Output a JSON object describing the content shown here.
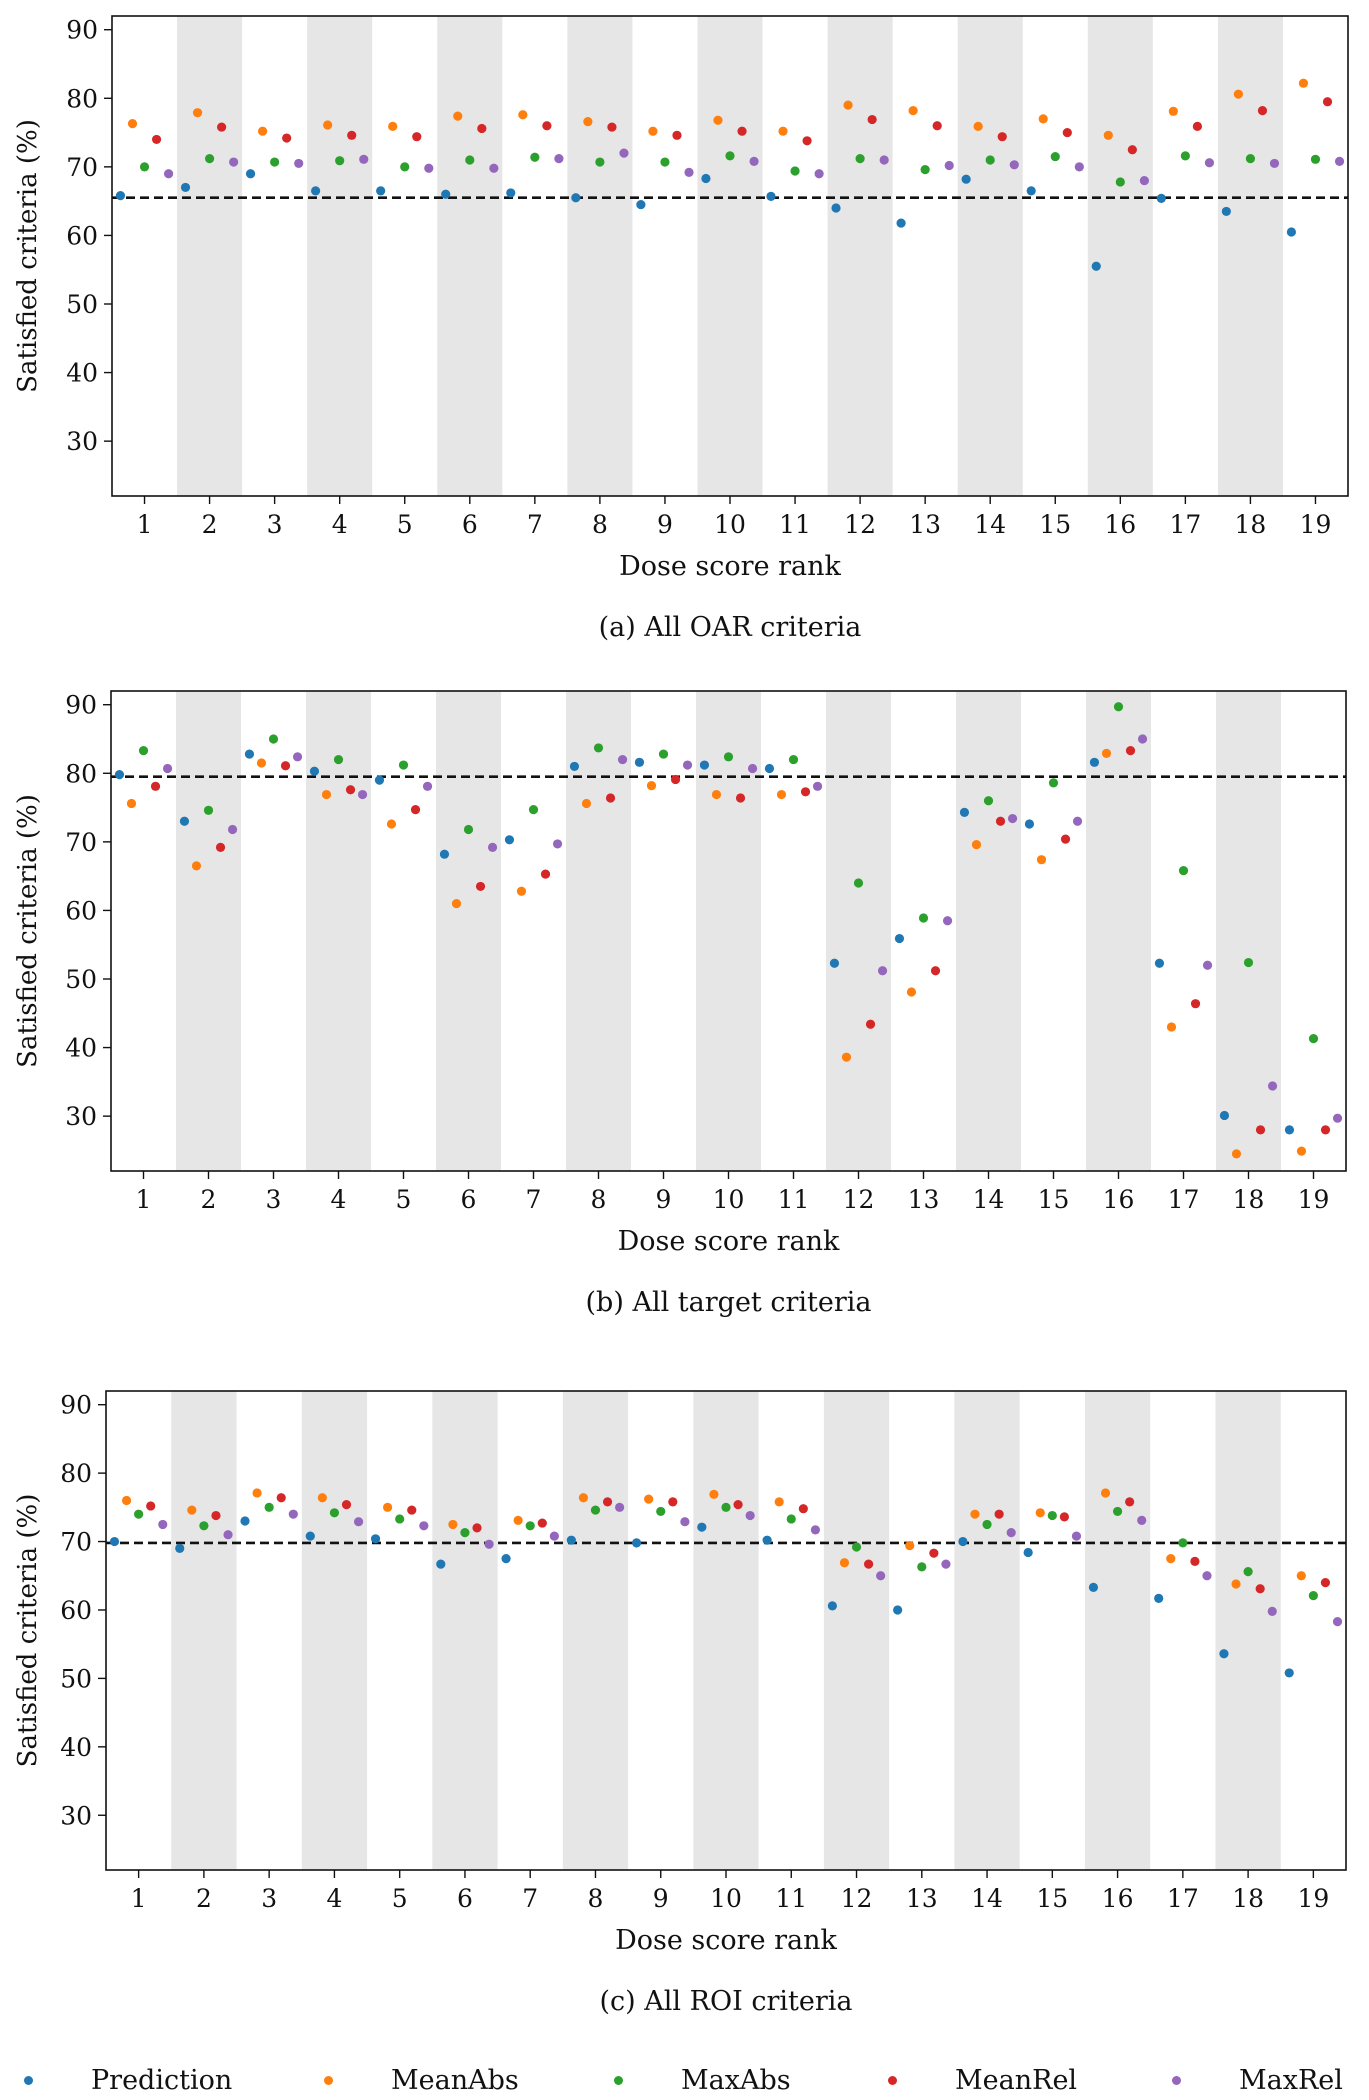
{
  "chart_data": [
    {
      "type": "scatter",
      "caption": "(a)  All OAR criteria",
      "xlabel": "Dose score rank",
      "ylabel": "Satisfied criteria (%)",
      "categories": [
        "1",
        "2",
        "3",
        "4",
        "5",
        "6",
        "7",
        "8",
        "9",
        "10",
        "11",
        "12",
        "13",
        "14",
        "15",
        "16",
        "17",
        "18",
        "19"
      ],
      "y_ticks": [
        "30",
        "40",
        "50",
        "60",
        "70",
        "80",
        "90"
      ],
      "ylim": [
        22,
        92
      ],
      "reference_line": 65.5,
      "shaded_ranks": [
        2,
        4,
        6,
        8,
        10,
        12,
        14,
        16,
        18
      ],
      "series": [
        {
          "name": "Prediction",
          "values": [
            65.8,
            67.0,
            69.0,
            66.5,
            66.5,
            66.0,
            66.2,
            65.5,
            64.5,
            68.3,
            65.7,
            64.0,
            61.8,
            68.2,
            66.5,
            55.5,
            65.4,
            63.5,
            60.5
          ]
        },
        {
          "name": "MeanAbs",
          "values": [
            76.3,
            77.9,
            75.2,
            76.1,
            75.9,
            77.4,
            77.6,
            76.6,
            75.2,
            76.8,
            75.2,
            79.0,
            78.2,
            75.9,
            77.0,
            74.6,
            78.1,
            80.6,
            82.2
          ]
        },
        {
          "name": "MaxAbs",
          "values": [
            70.0,
            71.2,
            70.7,
            70.9,
            70.0,
            71.0,
            71.4,
            70.7,
            70.7,
            71.6,
            69.4,
            71.2,
            69.6,
            71.0,
            71.5,
            67.8,
            71.6,
            71.2,
            71.1
          ]
        },
        {
          "name": "MeanRel",
          "values": [
            74.0,
            75.8,
            74.2,
            74.6,
            74.4,
            75.6,
            76.0,
            75.8,
            74.6,
            75.2,
            73.8,
            76.9,
            76.0,
            74.4,
            75.0,
            72.5,
            75.9,
            78.2,
            79.5
          ]
        },
        {
          "name": "MaxRel",
          "values": [
            69.0,
            70.7,
            70.5,
            71.1,
            69.8,
            69.8,
            71.2,
            72.0,
            69.2,
            70.8,
            69.0,
            71.0,
            70.2,
            70.3,
            70.0,
            68.0,
            70.6,
            70.5,
            70.8
          ]
        }
      ]
    },
    {
      "type": "scatter",
      "caption": "(b)  All target criteria",
      "xlabel": "Dose score rank",
      "ylabel": "Satisfied criteria (%)",
      "categories": [
        "1",
        "2",
        "3",
        "4",
        "5",
        "6",
        "7",
        "8",
        "9",
        "10",
        "11",
        "12",
        "13",
        "14",
        "15",
        "16",
        "17",
        "18",
        "19"
      ],
      "y_ticks": [
        "30",
        "40",
        "50",
        "60",
        "70",
        "80",
        "90"
      ],
      "ylim": [
        22,
        92
      ],
      "reference_line": 79.5,
      "shaded_ranks": [
        2,
        4,
        6,
        8,
        10,
        12,
        14,
        16,
        18
      ],
      "series": [
        {
          "name": "Prediction",
          "values": [
            79.8,
            73.0,
            82.8,
            80.3,
            79.0,
            68.2,
            70.3,
            81.0,
            81.6,
            81.2,
            80.7,
            52.3,
            55.9,
            74.3,
            72.6,
            81.6,
            52.3,
            30.1,
            28.0
          ]
        },
        {
          "name": "MeanAbs",
          "values": [
            75.6,
            66.5,
            81.5,
            76.9,
            72.6,
            61.0,
            62.8,
            75.6,
            78.2,
            76.9,
            76.9,
            38.6,
            48.1,
            69.6,
            67.4,
            82.9,
            43.0,
            24.5,
            24.9
          ]
        },
        {
          "name": "MaxAbs",
          "values": [
            83.3,
            74.6,
            85.0,
            82.0,
            81.2,
            71.8,
            74.7,
            83.7,
            82.8,
            82.4,
            82.0,
            64.0,
            58.9,
            76.0,
            78.6,
            89.7,
            65.8,
            52.4,
            41.3
          ]
        },
        {
          "name": "MeanRel",
          "values": [
            78.1,
            69.2,
            81.1,
            77.6,
            74.7,
            63.5,
            65.3,
            76.4,
            79.1,
            76.4,
            77.3,
            43.4,
            51.2,
            73.0,
            70.4,
            83.3,
            46.4,
            28.0,
            28.0
          ]
        },
        {
          "name": "MaxRel",
          "values": [
            80.7,
            71.8,
            82.4,
            76.9,
            78.1,
            69.2,
            69.7,
            82.0,
            81.2,
            80.7,
            78.1,
            51.2,
            58.5,
            73.4,
            73.0,
            85.0,
            52.0,
            34.4,
            29.7
          ]
        }
      ]
    },
    {
      "type": "scatter",
      "caption": "(c)  All ROI criteria",
      "xlabel": "Dose score rank",
      "ylabel": "Satisfied criteria (%)",
      "categories": [
        "1",
        "2",
        "3",
        "4",
        "5",
        "6",
        "7",
        "8",
        "9",
        "10",
        "11",
        "12",
        "13",
        "14",
        "15",
        "16",
        "17",
        "18",
        "19"
      ],
      "y_ticks": [
        "30",
        "40",
        "50",
        "60",
        "70",
        "80",
        "90"
      ],
      "ylim": [
        22,
        92
      ],
      "reference_line": 69.8,
      "shaded_ranks": [
        2,
        4,
        6,
        8,
        10,
        12,
        14,
        16,
        18
      ],
      "series": [
        {
          "name": "Prediction",
          "values": [
            70.0,
            69.0,
            73.0,
            70.8,
            70.4,
            66.7,
            67.5,
            70.2,
            69.8,
            72.1,
            70.2,
            60.6,
            60.0,
            70.0,
            68.4,
            63.3,
            61.7,
            53.6,
            50.8
          ]
        },
        {
          "name": "MeanAbs",
          "values": [
            76.0,
            74.6,
            77.1,
            76.4,
            75.0,
            72.5,
            73.1,
            76.4,
            76.2,
            76.9,
            75.8,
            66.9,
            69.4,
            74.0,
            74.2,
            77.1,
            67.5,
            63.8,
            65.0
          ]
        },
        {
          "name": "MaxAbs",
          "values": [
            74.0,
            72.3,
            75.0,
            74.2,
            73.3,
            71.3,
            72.3,
            74.6,
            74.4,
            75.0,
            73.3,
            69.2,
            66.3,
            72.5,
            73.8,
            74.4,
            69.8,
            65.6,
            62.1
          ]
        },
        {
          "name": "MeanRel",
          "values": [
            75.2,
            73.8,
            76.4,
            75.4,
            74.6,
            72.0,
            72.7,
            75.8,
            75.8,
            75.4,
            74.8,
            66.7,
            68.3,
            74.0,
            73.6,
            75.8,
            67.1,
            63.1,
            64.0
          ]
        },
        {
          "name": "MaxRel",
          "values": [
            72.5,
            71.0,
            74.0,
            72.9,
            72.3,
            69.6,
            70.8,
            75.0,
            72.9,
            73.8,
            71.7,
            65.0,
            66.7,
            71.3,
            70.8,
            73.1,
            65.0,
            59.8,
            58.3
          ]
        }
      ]
    }
  ],
  "legend": {
    "items": [
      {
        "name": "Prediction",
        "color": "#1f77b4"
      },
      {
        "name": "MeanAbs",
        "color": "#ff7f0e"
      },
      {
        "name": "MaxAbs",
        "color": "#2ca02c"
      },
      {
        "name": "MeanRel",
        "color": "#d62728"
      },
      {
        "name": "MaxRel",
        "color": "#9467bd"
      }
    ]
  }
}
